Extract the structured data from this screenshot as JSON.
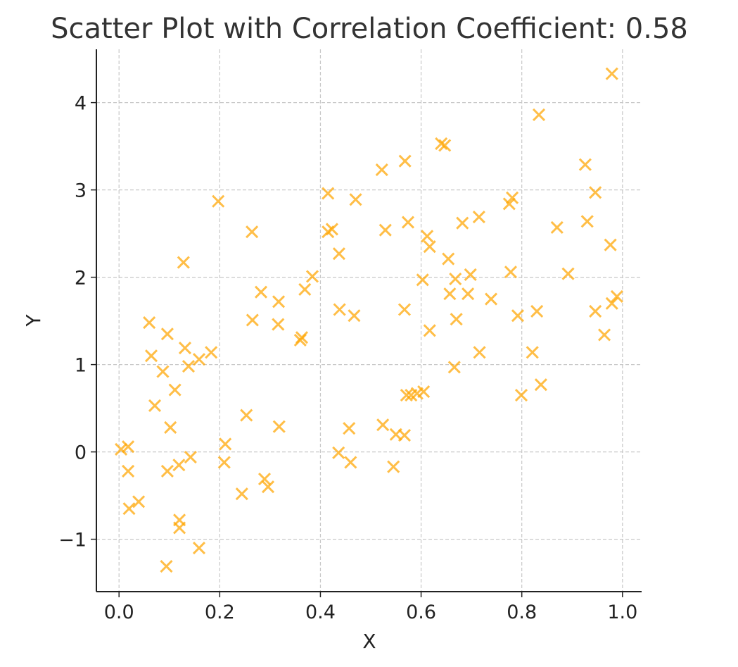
{
  "chart_data": {
    "type": "scatter",
    "title": "Scatter Plot with Correlation Coefficient: 0.58",
    "xlabel": "X",
    "ylabel": "Y",
    "xlim": [
      -0.045,
      1.038
    ],
    "ylim": [
      -1.6,
      4.61
    ],
    "xticks": [
      0.0,
      0.2,
      0.4,
      0.6,
      0.8,
      1.0
    ],
    "xtick_labels": [
      "0.0",
      "0.2",
      "0.4",
      "0.6",
      "0.8",
      "1.0"
    ],
    "yticks": [
      -1,
      0,
      1,
      2,
      3,
      4
    ],
    "ytick_labels": [
      "−1",
      "0",
      "1",
      "2",
      "3",
      "4"
    ],
    "grid": true,
    "marker": "x",
    "color": "#ffa500",
    "points": [
      [
        0.004,
        0.03
      ],
      [
        0.018,
        0.06
      ],
      [
        0.018,
        -0.22
      ],
      [
        0.02,
        -0.65
      ],
      [
        0.039,
        -0.57
      ],
      [
        0.06,
        1.48
      ],
      [
        0.064,
        1.1
      ],
      [
        0.071,
        0.53
      ],
      [
        0.087,
        0.92
      ],
      [
        0.096,
        1.35
      ],
      [
        0.096,
        -0.22
      ],
      [
        0.094,
        -1.31
      ],
      [
        0.102,
        0.28
      ],
      [
        0.111,
        0.71
      ],
      [
        0.119,
        -0.15
      ],
      [
        0.12,
        -0.78
      ],
      [
        0.12,
        -0.87
      ],
      [
        0.128,
        2.17
      ],
      [
        0.131,
        1.19
      ],
      [
        0.138,
        0.98
      ],
      [
        0.142,
        -0.06
      ],
      [
        0.159,
        1.06
      ],
      [
        0.159,
        -1.1
      ],
      [
        0.183,
        1.14
      ],
      [
        0.197,
        2.87
      ],
      [
        0.211,
        0.09
      ],
      [
        0.209,
        -0.12
      ],
      [
        0.244,
        -0.48
      ],
      [
        0.253,
        0.42
      ],
      [
        0.264,
        2.52
      ],
      [
        0.265,
        1.51
      ],
      [
        0.282,
        1.83
      ],
      [
        0.289,
        -0.31
      ],
      [
        0.296,
        -0.4
      ],
      [
        0.317,
        1.72
      ],
      [
        0.316,
        1.46
      ],
      [
        0.318,
        0.29
      ],
      [
        0.36,
        1.28
      ],
      [
        0.363,
        1.31
      ],
      [
        0.369,
        1.86
      ],
      [
        0.384,
        2.01
      ],
      [
        0.415,
        2.96
      ],
      [
        0.415,
        2.52
      ],
      [
        0.423,
        2.55
      ],
      [
        0.437,
        2.27
      ],
      [
        0.438,
        1.63
      ],
      [
        0.436,
        -0.01
      ],
      [
        0.457,
        0.27
      ],
      [
        0.46,
        -0.12
      ],
      [
        0.47,
        2.89
      ],
      [
        0.467,
        1.56
      ],
      [
        0.522,
        3.23
      ],
      [
        0.529,
        2.54
      ],
      [
        0.524,
        0.31
      ],
      [
        0.545,
        -0.17
      ],
      [
        0.55,
        0.2
      ],
      [
        0.567,
        0.19
      ],
      [
        0.568,
        3.33
      ],
      [
        0.574,
        2.63
      ],
      [
        0.567,
        1.63
      ],
      [
        0.571,
        0.65
      ],
      [
        0.58,
        0.65
      ],
      [
        0.592,
        0.67
      ],
      [
        0.605,
        0.69
      ],
      [
        0.603,
        1.97
      ],
      [
        0.612,
        2.47
      ],
      [
        0.617,
        2.35
      ],
      [
        0.617,
        1.39
      ],
      [
        0.64,
        3.53
      ],
      [
        0.647,
        3.51
      ],
      [
        0.654,
        2.21
      ],
      [
        0.657,
        1.81
      ],
      [
        0.666,
        0.97
      ],
      [
        0.668,
        1.98
      ],
      [
        0.67,
        1.52
      ],
      [
        0.682,
        2.62
      ],
      [
        0.693,
        1.81
      ],
      [
        0.698,
        2.03
      ],
      [
        0.715,
        2.69
      ],
      [
        0.716,
        1.14
      ],
      [
        0.739,
        1.75
      ],
      [
        0.775,
        2.84
      ],
      [
        0.781,
        2.91
      ],
      [
        0.778,
        2.06
      ],
      [
        0.792,
        1.56
      ],
      [
        0.799,
        0.65
      ],
      [
        0.821,
        1.14
      ],
      [
        0.83,
        1.61
      ],
      [
        0.834,
        3.86
      ],
      [
        0.838,
        0.77
      ],
      [
        0.87,
        2.57
      ],
      [
        0.892,
        2.04
      ],
      [
        0.926,
        3.29
      ],
      [
        0.93,
        2.64
      ],
      [
        0.946,
        2.97
      ],
      [
        0.946,
        1.61
      ],
      [
        0.964,
        1.34
      ],
      [
        0.979,
        4.33
      ],
      [
        0.976,
        2.37
      ],
      [
        0.979,
        1.7
      ],
      [
        0.989,
        1.78
      ]
    ]
  }
}
